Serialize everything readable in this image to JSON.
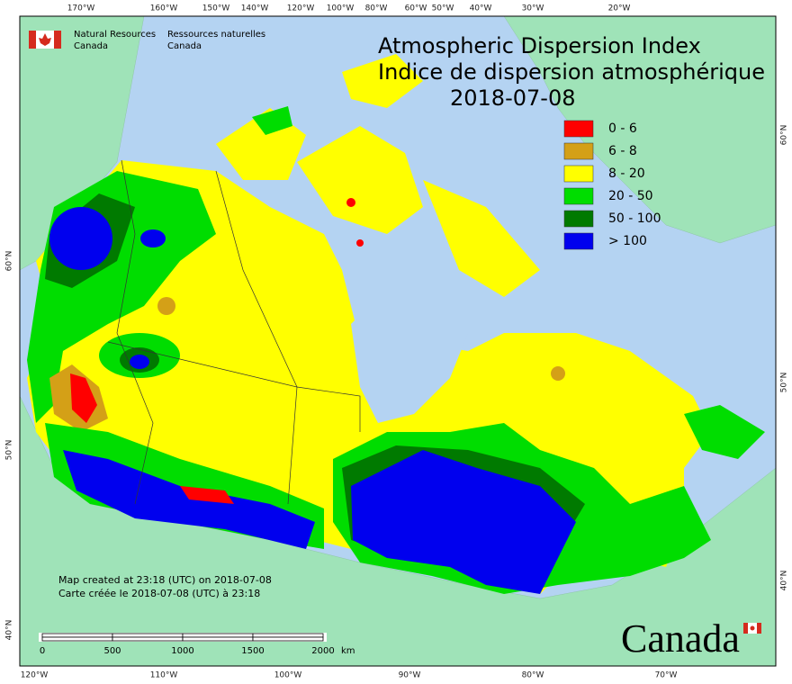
{
  "header": {
    "agency_en": "Natural Resources",
    "agency_en_2": "Canada",
    "agency_fr": "Ressources naturelles",
    "agency_fr_2": "Canada"
  },
  "title": {
    "en": "Atmospheric Dispersion Index",
    "fr": "Indice de dispersion atmosphérique",
    "date": "2018-07-08"
  },
  "legend": [
    {
      "label": "0 - 6",
      "color": "#ff0000"
    },
    {
      "label": "6 - 8",
      "color": "#d4a017"
    },
    {
      "label": "8 - 20",
      "color": "#ffff00"
    },
    {
      "label": "20 - 50",
      "color": "#00dd00"
    },
    {
      "label": "50 - 100",
      "color": "#007a00"
    },
    {
      "label": "> 100",
      "color": "#0000ee"
    }
  ],
  "graticule": {
    "top": [
      "170°W",
      "160°W",
      "150°W",
      "140°W",
      "120°W",
      "100°W",
      "80°W",
      "60°W",
      "50°W",
      "40°W",
      "30°W",
      "20°W"
    ],
    "bottom": [
      "120°W",
      "110°W",
      "100°W",
      "90°W",
      "80°W",
      "70°W"
    ],
    "left": [
      "60°N",
      "50°N",
      "40°N"
    ],
    "right": [
      "60°N",
      "50°N",
      "40°N"
    ]
  },
  "notes": [
    "Map created at 23:18 (UTC) on 2018-07-08",
    "Carte créée le 2018-07-08 (UTC) à 23:18"
  ],
  "scale_bar": {
    "labels": [
      "0",
      "500",
      "1000",
      "1500",
      "2000"
    ],
    "unit": "km"
  },
  "wordmark": "Canada"
}
